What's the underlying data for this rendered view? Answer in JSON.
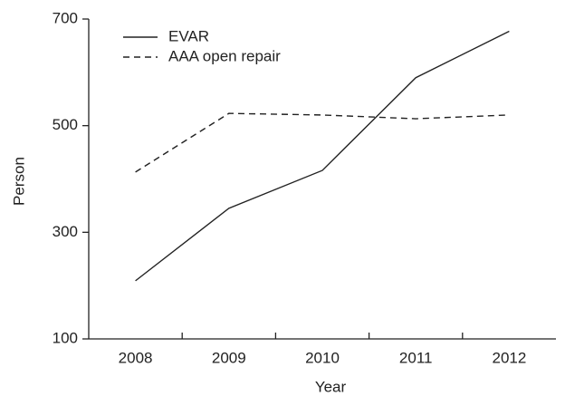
{
  "chart_data": {
    "type": "line",
    "x_label": "Year",
    "y_label": "Person",
    "categories": [
      "2008",
      "2009",
      "2010",
      "2011",
      "2012"
    ],
    "series": [
      {
        "name": "EVAR",
        "color": "#222222",
        "linestyle": "solid",
        "values": [
          209,
          345,
          416,
          590,
          677
        ]
      },
      {
        "name": "AAA open repair",
        "color": "#222222",
        "linestyle": "dashed",
        "values": [
          413,
          523,
          520,
          513,
          520
        ]
      }
    ],
    "ylim": [
      100,
      700
    ],
    "yticks": [
      100,
      300,
      500,
      700
    ],
    "legend": "upper left",
    "grid": false
  }
}
